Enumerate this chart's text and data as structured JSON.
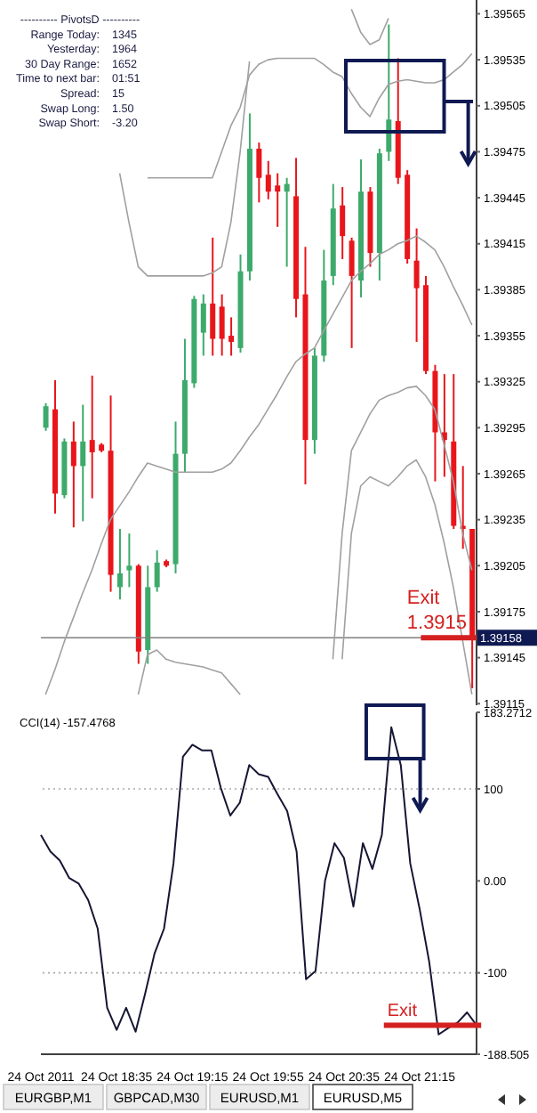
{
  "chart_data": [
    {
      "type": "candlestick",
      "tick_labels": "y",
      "categories": [
        null,
        null,
        null,
        null,
        null,
        null,
        null,
        null,
        null,
        null,
        null,
        null,
        null,
        null,
        null,
        null,
        null,
        null,
        null,
        null,
        null,
        null,
        null,
        null,
        null,
        null,
        null,
        null,
        null,
        null,
        null,
        null,
        null,
        null,
        null,
        null,
        null,
        null,
        null,
        null,
        null,
        null,
        null,
        null,
        null,
        null,
        null
      ],
      "ohlc": [
        [
          1.39295,
          1.39311,
          1.39293,
          1.39309
        ],
        [
          1.39307,
          1.39326,
          1.39239,
          1.39252
        ],
        [
          1.39251,
          1.39288,
          1.39249,
          1.39286
        ],
        [
          1.39286,
          1.39299,
          1.3923,
          1.3927
        ],
        [
          1.3927,
          1.3931,
          1.39234,
          1.39286
        ],
        [
          1.39287,
          1.39329,
          1.39249,
          1.39279
        ],
        [
          1.39284,
          1.39285,
          1.39279,
          1.3928
        ],
        [
          1.3928,
          1.39316,
          1.39188,
          1.39199
        ],
        [
          1.39191,
          1.39229,
          1.39183,
          1.392
        ],
        [
          1.39202,
          1.39226,
          1.39191,
          1.39205
        ],
        [
          1.39205,
          1.39206,
          1.39141,
          1.39149
        ],
        [
          1.3915,
          1.39205,
          1.39141,
          1.39191
        ],
        [
          1.39191,
          1.39215,
          1.39188,
          1.39207
        ],
        [
          1.39208,
          1.39209,
          1.39204,
          1.39205
        ],
        [
          1.39206,
          1.39299,
          1.392,
          1.39278
        ],
        [
          1.39278,
          1.39353,
          1.39266,
          1.39326
        ],
        [
          1.39324,
          1.39381,
          1.39321,
          1.39379
        ],
        [
          1.39357,
          1.39382,
          1.39342,
          1.39376
        ],
        [
          1.39376,
          1.39419,
          1.39342,
          1.39353
        ],
        [
          1.39374,
          1.39382,
          1.39342,
          1.39353
        ],
        [
          1.39355,
          1.39367,
          1.39342,
          1.39351
        ],
        [
          1.39347,
          1.39408,
          1.39344,
          1.39397
        ],
        [
          1.39397,
          1.395,
          1.39391,
          1.39477
        ],
        [
          1.39477,
          1.39481,
          1.39442,
          1.39458
        ],
        [
          1.3946,
          1.39469,
          1.39444,
          1.39449
        ],
        [
          1.39453,
          1.39461,
          1.39426,
          1.39449
        ],
        [
          1.39449,
          1.39458,
          1.394,
          1.39454
        ],
        [
          1.39446,
          1.39471,
          1.39367,
          1.39379
        ],
        [
          1.39382,
          1.39413,
          1.39258,
          1.39287
        ],
        [
          1.39287,
          1.39347,
          1.39278,
          1.39342
        ],
        [
          1.39342,
          1.39411,
          1.39338,
          1.39391
        ],
        [
          1.39394,
          1.39454,
          1.39388,
          1.39438
        ],
        [
          1.3944,
          1.39452,
          1.39405,
          1.3942
        ],
        [
          1.39417,
          1.39419,
          1.39347,
          1.39394
        ],
        [
          1.39391,
          1.3947,
          1.3938,
          1.39449
        ],
        [
          1.39449,
          1.39452,
          1.394,
          1.39409
        ],
        [
          1.39409,
          1.39477,
          1.39391,
          1.39474
        ],
        [
          1.39475,
          1.39558,
          1.39469,
          1.39496
        ],
        [
          1.39495,
          1.39536,
          1.39454,
          1.39458
        ],
        [
          1.3946,
          1.39463,
          1.39402,
          1.39405
        ],
        [
          1.39404,
          1.39425,
          1.39351,
          1.39386
        ],
        [
          1.39388,
          1.39394,
          1.3933,
          1.39332
        ],
        [
          1.39332,
          1.39336,
          1.3926,
          1.39292
        ],
        [
          1.39292,
          1.3933,
          1.39263,
          1.39287
        ],
        [
          1.39286,
          1.3933,
          1.39229,
          1.39231
        ],
        [
          1.39231,
          1.3927,
          1.39216,
          1.39229
        ],
        [
          1.39229,
          1.39229,
          1.39125,
          1.39158
        ]
      ],
      "colors": [
        "#3daa6c",
        "#e8161b",
        "#3daa6c",
        "#e8161b",
        "#3daa6c",
        "#e8161b",
        "#e8161b",
        "#e8161b",
        "#3daa6c",
        "#3daa6c",
        "#e8161b",
        "#3daa6c",
        "#3daa6c",
        "#e8161b",
        "#3daa6c",
        "#3daa6c",
        "#3daa6c",
        "#3daa6c",
        "#e8161b",
        "#e8161b",
        "#e8161b",
        "#3daa6c",
        "#3daa6c",
        "#e8161b",
        "#e8161b",
        "#e8161b",
        "#3daa6c",
        "#e8161b",
        "#e8161b",
        "#3daa6c",
        "#3daa6c",
        "#3daa6c",
        "#e8161b",
        "#e8161b",
        "#3daa6c",
        "#e8161b",
        "#3daa6c",
        "#3daa6c",
        "#e8161b",
        "#e8161b",
        "#e8161b",
        "#e8161b",
        "#e8161b",
        "#e8161b",
        "#e8161b",
        "#e8161b",
        "#e8161b"
      ],
      "series": [
        {
          "type": "line",
          "color": "#a0a0a0",
          "values": [
            1.39121,
            1.39137,
            1.39155,
            1.39171,
            1.39187,
            1.39202,
            1.39219,
            1.39235,
            1.39244,
            1.39253,
            1.39263,
            1.39272,
            1.3927,
            1.39268,
            1.39266,
            1.39266,
            1.39266,
            1.39266,
            1.39266,
            1.39268,
            1.39272,
            1.3928,
            1.39289,
            1.39297,
            1.39307,
            1.39317,
            1.39328,
            1.39338,
            1.39343,
            1.39347,
            1.39358,
            1.39369,
            1.3938,
            1.39391,
            1.39397,
            1.39402,
            1.39408,
            1.39411,
            1.39415,
            1.39417,
            1.3942,
            1.39416,
            1.39411,
            1.394,
            1.39387,
            1.39375,
            1.39362
          ]
        },
        {
          "type": "line",
          "color": "#a0a0a0",
          "values": [
            null,
            null,
            null,
            null,
            null,
            null,
            null,
            null,
            null,
            null,
            null,
            1.39458,
            1.39458,
            1.39458,
            1.39458,
            1.39458,
            1.39458,
            1.39458,
            1.39458,
            1.39475,
            1.39492,
            1.39504,
            1.39525,
            1.39532,
            1.39535,
            1.39536,
            1.39536,
            1.39536,
            1.39536,
            1.39536,
            1.39532,
            1.39527,
            1.39524,
            1.39513,
            1.39504,
            1.39498,
            1.3951,
            1.39519,
            1.39521,
            1.39522,
            1.39521,
            1.3952,
            1.3952,
            1.39522,
            1.39527,
            1.39532,
            1.39539
          ]
        },
        {
          "type": "line",
          "color": "#a0a0a0",
          "values": [
            null,
            null,
            null,
            null,
            null,
            null,
            null,
            null,
            1.39461,
            1.39429,
            1.394,
            1.39394,
            1.39394,
            1.39394,
            1.39394,
            1.39394,
            1.39394,
            1.39394,
            1.39396,
            1.394,
            1.39429,
            1.39475,
            1.39534,
            null,
            null,
            null,
            null,
            null,
            null,
            null,
            null,
            null,
            null,
            1.39568,
            1.39553,
            1.39545,
            1.39548,
            1.39562,
            null,
            null,
            null,
            null,
            null,
            null,
            null,
            null,
            null
          ]
        },
        {
          "type": "line",
          "color": "#a0a0a0",
          "values": [
            null,
            null,
            null,
            null,
            null,
            null,
            null,
            null,
            null,
            null,
            null,
            null,
            null,
            null,
            null,
            null,
            null,
            null,
            null,
            null,
            null,
            null,
            null,
            null,
            null,
            null,
            null,
            null,
            null,
            null,
            null,
            1.39144,
            1.39226,
            1.3928,
            1.39292,
            1.39304,
            1.39313,
            1.39316,
            1.39318,
            1.39321,
            1.39322,
            1.39316,
            1.39307,
            1.39284,
            1.3926,
            1.39226,
            1.39202
          ]
        },
        {
          "type": "line",
          "color": "#a0a0a0",
          "values": [
            null,
            null,
            null,
            null,
            null,
            null,
            null,
            null,
            null,
            null,
            1.39121,
            1.39147,
            1.3915,
            1.39144,
            1.39142,
            1.39141,
            1.3914,
            1.39139,
            1.39137,
            1.39135,
            1.39128,
            1.39121,
            null,
            null,
            null,
            null,
            null,
            null,
            null,
            null,
            null,
            null,
            1.39144,
            1.39226,
            1.39257,
            1.39263,
            1.3926,
            1.39257,
            1.39263,
            1.3927,
            1.39274,
            1.39263,
            1.39245,
            1.3922,
            1.39191,
            1.39156,
            1.39121
          ]
        }
      ],
      "ylim": [
        1.39114,
        1.39574
      ],
      "yticks": [
        1.39115,
        1.39145,
        1.39175,
        1.39205,
        1.39235,
        1.39265,
        1.39295,
        1.39325,
        1.39355,
        1.39385,
        1.39415,
        1.39445,
        1.39475,
        1.39505,
        1.39535,
        1.39565
      ],
      "ref_lines": [
        {
          "axis": "y",
          "value": 1.39158,
          "label": "1.39158",
          "color": "#808080"
        }
      ],
      "annotations": [
        "---------- PivotsD ----------",
        "Range  Today: 1345",
        "Yesterday: 1964",
        "30 Day Range: 1652",
        "Time to next bar: 01:51",
        "Spread: 15",
        "Swap  Long: 1.50",
        "Swap  Short: -3.20",
        "Exit 1.3915"
      ]
    },
    {
      "type": "line",
      "title": "CCI(14) -157.4768",
      "categories": [
        "24 Oct 2011",
        null,
        null,
        null,
        null,
        null,
        null,
        null,
        "24 Oct 18:35",
        null,
        null,
        null,
        null,
        null,
        null,
        null,
        "24 Oct 19:15",
        null,
        null,
        null,
        null,
        null,
        null,
        null,
        "24 Oct 19:55",
        null,
        null,
        null,
        null,
        null,
        null,
        null,
        "24 Oct 20:35",
        null,
        null,
        null,
        null,
        null,
        null,
        null,
        "24 Oct 21:15",
        null,
        null,
        null,
        null,
        null,
        null
      ],
      "series": [
        {
          "color": "#161634",
          "values": [
            50,
            32,
            22,
            3,
            -3,
            -21,
            -52,
            -138,
            -162,
            -138,
            -164,
            -123,
            -79,
            -52,
            19,
            135,
            148,
            142,
            142,
            101,
            71,
            85,
            126,
            116,
            113,
            94,
            76,
            32,
            -107,
            -98,
            0,
            41,
            25,
            -28,
            41,
            13,
            50,
            167,
            126,
            19,
            -31,
            -88,
            -167,
            -160,
            -154,
            -143,
            -157
          ]
        }
      ],
      "ylim": [
        -188.505,
        183.2712
      ],
      "yticks": [
        -188.505,
        -100,
        {
          "value": 0,
          "label": "0.00"
        },
        100,
        183.2712
      ],
      "ref_lines": [
        {
          "axis": "y",
          "value": 100,
          "color": "#a8a8a8",
          "line_style": "dotted"
        },
        {
          "axis": "y",
          "value": -100,
          "color": "#a8a8a8",
          "line_style": "dotted"
        }
      ],
      "annotations": [
        "Exit",
        "EURGBP,M1",
        "GBPCAD,M30",
        "EURUSD,M1",
        "EURUSD,M5"
      ]
    }
  ]
}
